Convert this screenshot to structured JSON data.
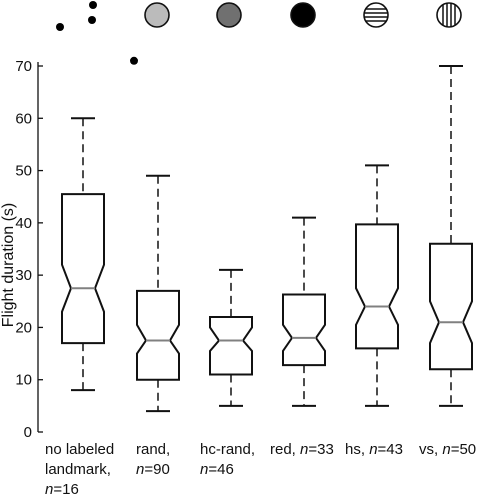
{
  "chart_data": {
    "type": "box",
    "ylabel": "Flight duration (s)",
    "ylim": [
      0,
      70
    ],
    "yticks": [
      0,
      10,
      20,
      30,
      40,
      50,
      60,
      70
    ],
    "grid": false,
    "categories": [
      {
        "lines": [
          {
            "t": "no labeled"
          },
          {
            "t": "landmark,"
          },
          {
            "n": "16"
          }
        ]
      },
      {
        "lines": [
          {
            "t": "rand,"
          },
          {
            "n": "90"
          }
        ]
      },
      {
        "lines": [
          {
            "t": "hc-rand,"
          },
          {
            "n": "46"
          }
        ]
      },
      {
        "lines": [
          {
            "t": "red, ",
            "n": "33"
          }
        ]
      },
      {
        "lines": [
          {
            "t": "hs, ",
            "n": "43"
          }
        ]
      },
      {
        "lines": [
          {
            "t": "vs, ",
            "n": "50"
          }
        ]
      }
    ],
    "n_symbol": "n",
    "n_eq": "=",
    "boxes": [
      {
        "whisker_low": 8,
        "q1": 17,
        "median": 27.5,
        "q3": 45.5,
        "whisker_high": 60,
        "notch_low": 23,
        "notch_high": 32,
        "outliers": [
          71
        ]
      },
      {
        "whisker_low": 4,
        "q1": 10,
        "median": 17.5,
        "q3": 27,
        "whisker_high": 49,
        "notch_low": 15,
        "notch_high": 20.5,
        "outliers": []
      },
      {
        "whisker_low": 5,
        "q1": 11,
        "median": 17.5,
        "q3": 22,
        "whisker_high": 31,
        "notch_low": 15.5,
        "notch_high": 20,
        "outliers": []
      },
      {
        "whisker_low": 5,
        "q1": 12.8,
        "median": 18,
        "q3": 26.3,
        "whisker_high": 41,
        "notch_low": 15.5,
        "notch_high": 20.5,
        "outliers": []
      },
      {
        "whisker_low": 5,
        "q1": 16,
        "median": 24,
        "q3": 39.7,
        "whisker_high": 51,
        "notch_low": 20.5,
        "notch_high": 27.5,
        "outliers": []
      },
      {
        "whisker_low": 5,
        "q1": 12,
        "median": 21,
        "q3": 36,
        "whisker_high": 70,
        "notch_low": 17,
        "notch_high": 25,
        "outliers": []
      }
    ],
    "stray_marks": [
      "dot",
      "dot",
      "dot"
    ],
    "header_icons": [
      {
        "fill": "#bbbbbb",
        "pattern": "solid"
      },
      {
        "fill": "#707070",
        "pattern": "solid"
      },
      {
        "fill": "#000000",
        "pattern": "solid"
      },
      {
        "fill": "#ffffff",
        "pattern": "horizontal-stripes"
      },
      {
        "fill": "#ffffff",
        "pattern": "vertical-stripes"
      }
    ]
  }
}
